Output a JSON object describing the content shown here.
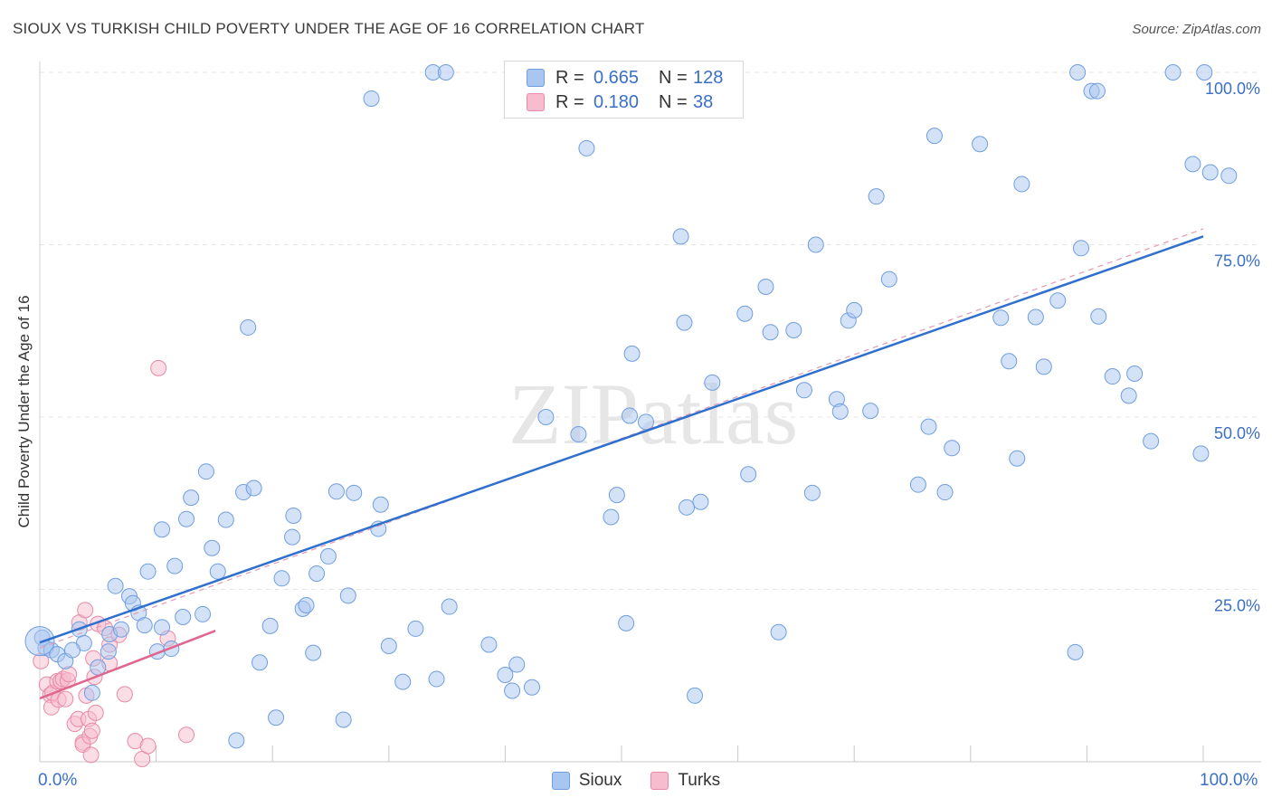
{
  "title": "SIOUX VS TURKISH CHILD POVERTY UNDER THE AGE OF 16 CORRELATION CHART",
  "source": "Source: ZipAtlas.com",
  "watermark": "ZIPatlas",
  "legend_stats": [
    {
      "series": "Sioux",
      "r_label": "R =",
      "r": "0.665",
      "n_label": "N =",
      "n": "128",
      "color": "#a9c6f0",
      "border": "#6f9ee0"
    },
    {
      "series": "Turks",
      "r_label": "R =",
      "r": "0.180",
      "n_label": "N =",
      "n": "38",
      "color": "#f7bccd",
      "border": "#e88aa7"
    }
  ],
  "chart_data": {
    "type": "scatter",
    "title": "SIOUX VS TURKISH CHILD POVERTY UNDER THE AGE OF 16 CORRELATION CHART",
    "xlabel": "",
    "ylabel": "Child Poverty Under the Age of 16",
    "xlim": [
      0,
      100
    ],
    "ylim": [
      0,
      100
    ],
    "x_tick_labels": [
      "0.0%",
      "100.0%"
    ],
    "y_tick_values": [
      25,
      50,
      75,
      100
    ],
    "y_tick_labels": [
      "25.0%",
      "50.0%",
      "75.0%",
      "100.0%"
    ],
    "grid": true,
    "legend_position": "bottom-center",
    "series": [
      {
        "name": "Sioux",
        "color": "#a9c6f0",
        "edge": "#6f9ee0",
        "trend": {
          "x0": 0,
          "y0": 17.3,
          "x1": 100,
          "y1": 76.2,
          "color": "#2f6fce"
        },
        "dashed_trend": {
          "x0": 0,
          "y0": 16.5,
          "x1": 100,
          "y1": 77.3,
          "color": "#e59ab4"
        },
        "points": [
          [
            0.2,
            18
          ],
          [
            0.5,
            16.5
          ],
          [
            1.0,
            16.2
          ],
          [
            1.5,
            15.6
          ],
          [
            2.2,
            14.6
          ],
          [
            3.4,
            19.2
          ],
          [
            3.8,
            17.2
          ],
          [
            2.8,
            16.2
          ],
          [
            4.5,
            10.0
          ],
          [
            5.0,
            13.7
          ],
          [
            6.0,
            18.5
          ],
          [
            5.9,
            16.0
          ],
          [
            6.5,
            25.5
          ],
          [
            7.0,
            19.2
          ],
          [
            7.7,
            24.0
          ],
          [
            8.0,
            23.0
          ],
          [
            8.5,
            21.6
          ],
          [
            9.0,
            19.8
          ],
          [
            9.3,
            27.6
          ],
          [
            10.1,
            16.0
          ],
          [
            10.5,
            33.7
          ],
          [
            10.5,
            19.5
          ],
          [
            11.3,
            16.4
          ],
          [
            11.6,
            28.4
          ],
          [
            12.3,
            21.0
          ],
          [
            12.6,
            35.2
          ],
          [
            13.0,
            38.3
          ],
          [
            14.0,
            21.4
          ],
          [
            14.3,
            42.1
          ],
          [
            14.8,
            31.0
          ],
          [
            15.3,
            27.6
          ],
          [
            16.0,
            35.1
          ],
          [
            16.9,
            3.1
          ],
          [
            17.5,
            39.1
          ],
          [
            17.9,
            63.0
          ],
          [
            18.4,
            39.7
          ],
          [
            18.9,
            14.4
          ],
          [
            19.8,
            19.7
          ],
          [
            20.3,
            6.4
          ],
          [
            20.8,
            26.6
          ],
          [
            21.7,
            32.6
          ],
          [
            21.8,
            35.7
          ],
          [
            22.6,
            22.2
          ],
          [
            22.9,
            22.7
          ],
          [
            23.5,
            15.8
          ],
          [
            23.8,
            27.3
          ],
          [
            24.8,
            29.8
          ],
          [
            25.5,
            39.2
          ],
          [
            26.1,
            6.1
          ],
          [
            26.5,
            24.1
          ],
          [
            27.0,
            39.0
          ],
          [
            28.5,
            96.2
          ],
          [
            29.1,
            33.8
          ],
          [
            29.3,
            37.3
          ],
          [
            30.0,
            16.8
          ],
          [
            31.2,
            11.6
          ],
          [
            32.3,
            19.3
          ],
          [
            33.8,
            100
          ],
          [
            34.1,
            12.0
          ],
          [
            34.9,
            100
          ],
          [
            35.2,
            22.5
          ],
          [
            38.6,
            17.0
          ],
          [
            40.0,
            12.6
          ],
          [
            40.6,
            10.3
          ],
          [
            41.0,
            14.1
          ],
          [
            41.5,
            100
          ],
          [
            42.3,
            10.8
          ],
          [
            43.5,
            50.0
          ],
          [
            46.3,
            47.5
          ],
          [
            47.0,
            89.0
          ],
          [
            49.1,
            35.5
          ],
          [
            49.6,
            38.7
          ],
          [
            50.4,
            20.1
          ],
          [
            50.7,
            50.2
          ],
          [
            50.9,
            59.2
          ],
          [
            52.1,
            49.3
          ],
          [
            55.1,
            76.2
          ],
          [
            55.4,
            63.7
          ],
          [
            55.6,
            36.9
          ],
          [
            56.3,
            9.6
          ],
          [
            56.8,
            37.7
          ],
          [
            57.8,
            55.0
          ],
          [
            60.6,
            65.0
          ],
          [
            60.9,
            41.7
          ],
          [
            62.4,
            68.9
          ],
          [
            62.8,
            62.3
          ],
          [
            63.5,
            18.8
          ],
          [
            64.8,
            62.6
          ],
          [
            65.7,
            53.9
          ],
          [
            66.4,
            39.0
          ],
          [
            66.7,
            75.0
          ],
          [
            68.5,
            52.6
          ],
          [
            68.8,
            50.8
          ],
          [
            69.5,
            64.0
          ],
          [
            70.0,
            65.5
          ],
          [
            71.4,
            50.9
          ],
          [
            71.9,
            82.0
          ],
          [
            73.0,
            70.0
          ],
          [
            75.5,
            40.2
          ],
          [
            76.4,
            48.6
          ],
          [
            76.9,
            90.8
          ],
          [
            77.8,
            39.1
          ],
          [
            78.4,
            45.5
          ],
          [
            80.8,
            89.6
          ],
          [
            82.6,
            64.4
          ],
          [
            83.3,
            58.1
          ],
          [
            84.0,
            44.0
          ],
          [
            84.4,
            83.8
          ],
          [
            85.6,
            64.5
          ],
          [
            86.3,
            57.3
          ],
          [
            87.5,
            66.9
          ],
          [
            89.0,
            15.9
          ],
          [
            89.2,
            100
          ],
          [
            89.5,
            74.5
          ],
          [
            90.4,
            97.3
          ],
          [
            90.9,
            97.3
          ],
          [
            91.0,
            64.6
          ],
          [
            92.2,
            55.9
          ],
          [
            93.6,
            53.1
          ],
          [
            94.1,
            56.3
          ],
          [
            95.5,
            46.5
          ],
          [
            97.4,
            100
          ],
          [
            99.1,
            86.7
          ],
          [
            99.8,
            44.7
          ],
          [
            100.1,
            100
          ],
          [
            100.6,
            85.5
          ],
          [
            102.2,
            85.0
          ],
          [
            0.0,
            17.5
          ]
        ]
      },
      {
        "name": "Turks",
        "color": "#f7bccd",
        "edge": "#e88aa7",
        "trend": {
          "x0": 0,
          "y0": 9.2,
          "x1": 15.1,
          "y1": 19.0,
          "color": "#e0668d"
        },
        "points": [
          [
            0.1,
            14.6
          ],
          [
            0.6,
            11.2
          ],
          [
            0.9,
            9.7
          ],
          [
            1.0,
            7.9
          ],
          [
            1.1,
            10.0
          ],
          [
            1.5,
            11.7
          ],
          [
            1.6,
            9.0
          ],
          [
            1.8,
            11.7
          ],
          [
            2.0,
            12.0
          ],
          [
            2.2,
            9.1
          ],
          [
            2.4,
            11.8
          ],
          [
            2.5,
            12.7
          ],
          [
            3.0,
            5.5
          ],
          [
            3.3,
            6.2
          ],
          [
            3.4,
            20.2
          ],
          [
            3.7,
            2.8
          ],
          [
            3.7,
            2.5
          ],
          [
            3.9,
            22.0
          ],
          [
            4.0,
            9.6
          ],
          [
            4.2,
            6.2
          ],
          [
            4.3,
            3.7
          ],
          [
            4.4,
            1.0
          ],
          [
            4.5,
            4.5
          ],
          [
            4.6,
            15.0
          ],
          [
            4.7,
            12.3
          ],
          [
            4.8,
            7.1
          ],
          [
            5.0,
            20.0
          ],
          [
            5.6,
            19.4
          ],
          [
            6.0,
            17.0
          ],
          [
            6.0,
            14.3
          ],
          [
            7.3,
            9.8
          ],
          [
            8.2,
            3.0
          ],
          [
            8.8,
            0.4
          ],
          [
            9.3,
            2.3
          ],
          [
            10.2,
            57.1
          ],
          [
            11.0,
            17.9
          ],
          [
            12.6,
            3.9
          ],
          [
            6.8,
            18.4
          ]
        ]
      }
    ]
  }
}
